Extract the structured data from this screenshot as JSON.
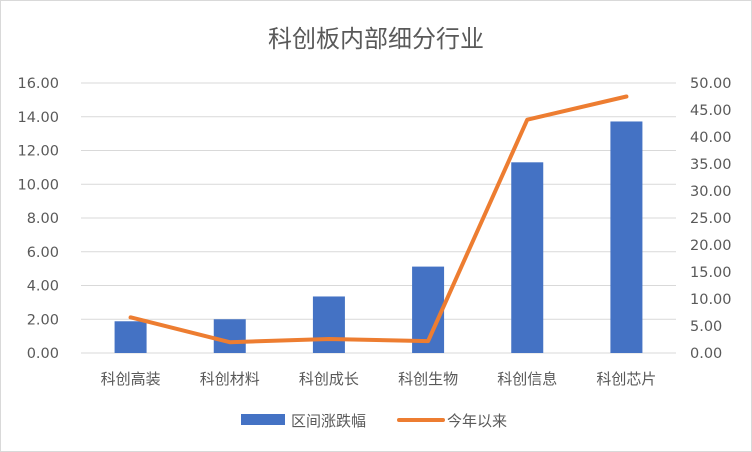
{
  "chart_data": {
    "type": "bar+line",
    "title": "科创板内部细分行业",
    "categories": [
      "科创高装",
      "科创材料",
      "科创成长",
      "科创生物",
      "科创信息",
      "科创芯片"
    ],
    "series": [
      {
        "name": "区间涨跌幅",
        "type": "bar",
        "axis": "left",
        "color": "#4472C4",
        "values": [
          1.88,
          2.0,
          3.35,
          5.12,
          11.3,
          13.72
        ]
      },
      {
        "name": "今年以来",
        "type": "line",
        "axis": "right",
        "color": "#ED7D31",
        "values": [
          6.6,
          2.0,
          2.6,
          2.2,
          43.2,
          47.5
        ]
      }
    ],
    "left_axis": {
      "min": 0,
      "max": 16,
      "step": 2,
      "ticks": [
        "0.00",
        "2.00",
        "4.00",
        "6.00",
        "8.00",
        "10.00",
        "12.00",
        "14.00",
        "16.00"
      ]
    },
    "right_axis": {
      "min": 0,
      "max": 50,
      "step": 5,
      "ticks": [
        "0.00",
        "5.00",
        "10.00",
        "15.00",
        "20.00",
        "25.00",
        "30.00",
        "35.00",
        "40.00",
        "45.00",
        "50.00"
      ]
    },
    "gridlines": true,
    "legend_position": "bottom"
  }
}
